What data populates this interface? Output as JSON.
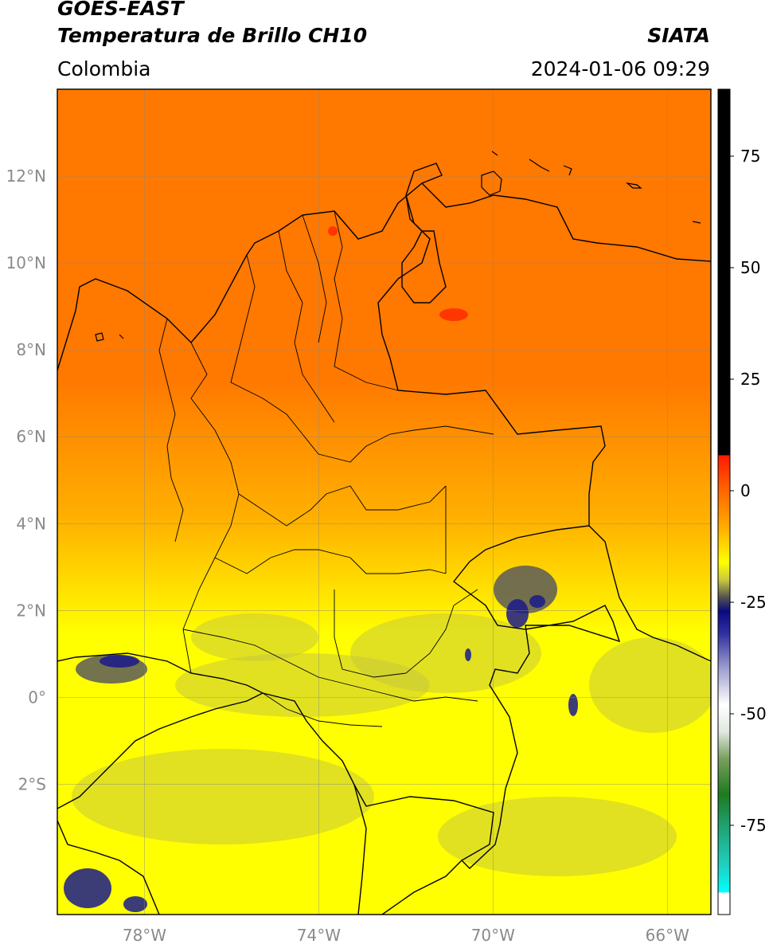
{
  "header": {
    "satellite": "GOES-EAST",
    "product": "Temperatura de Brillo CH10",
    "region": "Colombia",
    "brand": "SIATA",
    "datetime": "2024-01-06 09:29"
  },
  "map": {
    "lon_range": [
      -80.0,
      -65.0
    ],
    "lat_range": [
      -5.0,
      14.0
    ],
    "lon_ticks": [
      {
        "value": -78,
        "label": "78°W"
      },
      {
        "value": -74,
        "label": "74°W"
      },
      {
        "value": -70,
        "label": "70°W"
      },
      {
        "value": -66,
        "label": "66°W"
      }
    ],
    "lat_ticks": [
      {
        "value": 12,
        "label": "12°N"
      },
      {
        "value": 10,
        "label": "10°N"
      },
      {
        "value": 8,
        "label": "8°N"
      },
      {
        "value": 6,
        "label": "6°N"
      },
      {
        "value": 4,
        "label": "4°N"
      },
      {
        "value": 2,
        "label": "2°N"
      },
      {
        "value": 0,
        "label": "0°"
      },
      {
        "value": -2,
        "label": "2°S"
      }
    ],
    "grid": true
  },
  "colorbar": {
    "range": [
      -95,
      90
    ],
    "ticks": [
      {
        "value": 75,
        "label": "75"
      },
      {
        "value": 50,
        "label": "50"
      },
      {
        "value": 25,
        "label": "25"
      },
      {
        "value": 0,
        "label": "0"
      },
      {
        "value": -25,
        "label": "-25"
      },
      {
        "value": -50,
        "label": "-50"
      },
      {
        "value": -75,
        "label": "-75"
      }
    ],
    "stops": [
      {
        "value": 90,
        "color": "#000000"
      },
      {
        "value": 8,
        "color": "#000000"
      },
      {
        "value": 7.9,
        "color": "#ff1a00"
      },
      {
        "value": 0,
        "color": "#ff6600"
      },
      {
        "value": -8,
        "color": "#ffaa00"
      },
      {
        "value": -16,
        "color": "#ffff00"
      },
      {
        "value": -20,
        "color": "#c8c840"
      },
      {
        "value": -24,
        "color": "#505050"
      },
      {
        "value": -27,
        "color": "#0a0a80"
      },
      {
        "value": -32,
        "color": "#3030a0"
      },
      {
        "value": -40,
        "color": "#a0a0d0"
      },
      {
        "value": -48,
        "color": "#ffffff"
      },
      {
        "value": -54,
        "color": "#e0e8e0"
      },
      {
        "value": -60,
        "color": "#7aa060"
      },
      {
        "value": -68,
        "color": "#1e7a1e"
      },
      {
        "value": -75,
        "color": "#20a070"
      },
      {
        "value": -84,
        "color": "#20d0c0"
      },
      {
        "value": -90,
        "color": "#00ffff"
      },
      {
        "value": -90.1,
        "color": "#ffffff"
      },
      {
        "value": -95,
        "color": "#ffffff"
      }
    ]
  },
  "field": {
    "color_south": "#ffff00",
    "color_mid": "#ffb000",
    "color_north": "#ff7800",
    "cloud_gray": "#c8c83c",
    "cloud_dark": "#5a5a5a",
    "cloud_blue": "#1a1a8c",
    "hot_red": "#ff2a00"
  }
}
